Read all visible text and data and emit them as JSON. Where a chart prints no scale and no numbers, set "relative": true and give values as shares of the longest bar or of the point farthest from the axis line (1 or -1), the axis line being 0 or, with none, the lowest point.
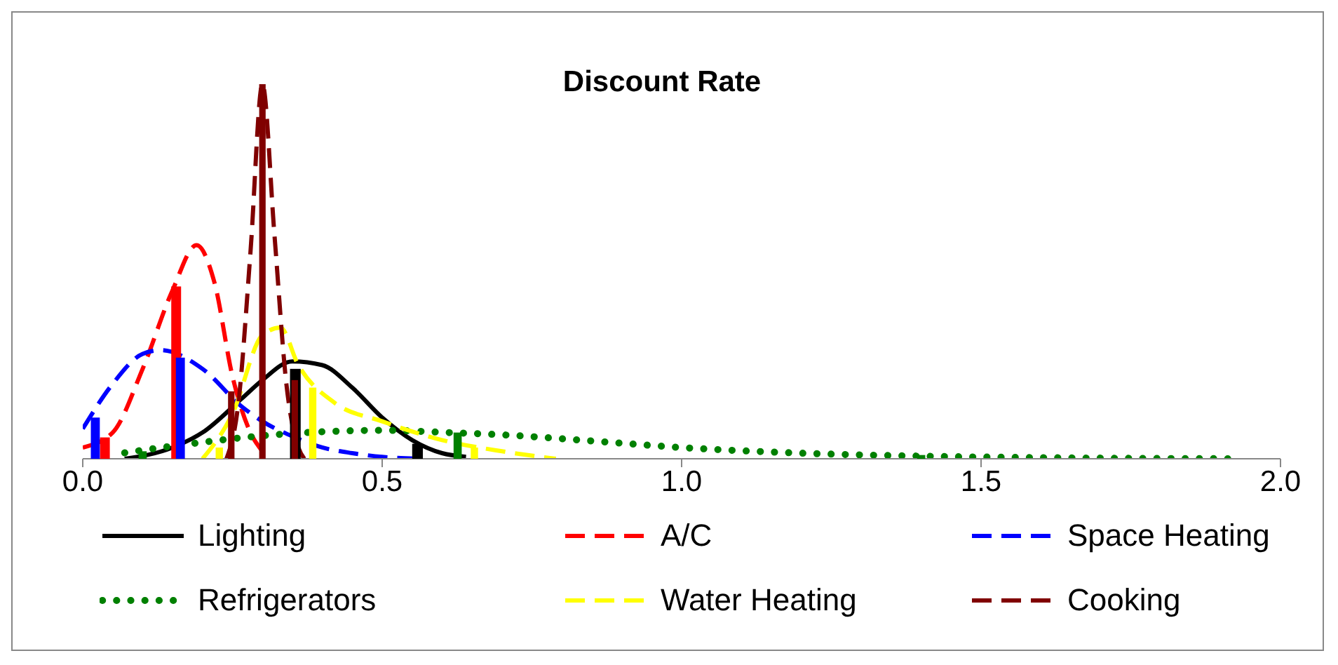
{
  "chart_data": {
    "type": "line",
    "title": "Discount Rate",
    "relative": true,
    "xlim": [
      0,
      2
    ],
    "xticks": [
      {
        "value": 0,
        "label": "0.0"
      },
      0.5,
      {
        "value": 1,
        "label": "1.0"
      },
      1.5,
      {
        "value": 2,
        "label": "2.0"
      }
    ],
    "grid": false,
    "legend": "bottom",
    "marker": "none",
    "series": [
      {
        "name": "Lighting",
        "color": "#000000",
        "line_style": "solid",
        "x": [
          0.07,
          0.15,
          0.2,
          0.265,
          0.3,
          0.35,
          0.4,
          0.45,
          0.5,
          0.55,
          0.6,
          0.64
        ],
        "values": [
          0.0,
          0.03,
          0.07,
          0.16,
          0.21,
          0.26,
          0.25,
          0.19,
          0.11,
          0.05,
          0.015,
          0.005
        ]
      },
      {
        "name": "A/C",
        "color": "#ff0000",
        "line_style": "dashed",
        "x": [
          0.0,
          0.05,
          0.1,
          0.15,
          0.19,
          0.22,
          0.25,
          0.28,
          0.3
        ],
        "values": [
          0.03,
          0.07,
          0.24,
          0.45,
          0.57,
          0.47,
          0.22,
          0.07,
          0.02
        ]
      },
      {
        "name": "Space Heating",
        "color": "#0000ff",
        "line_style": "dashed",
        "x": [
          0.0,
          0.05,
          0.1,
          0.13,
          0.2,
          0.265,
          0.3,
          0.35,
          0.4,
          0.45,
          0.5,
          0.56
        ],
        "values": [
          0.08,
          0.2,
          0.28,
          0.29,
          0.24,
          0.14,
          0.1,
          0.06,
          0.03,
          0.015,
          0.005,
          0.0
        ]
      },
      {
        "name": "Refrigerators",
        "color": "#008000",
        "line_style": "dotted",
        "x": [
          0.07,
          0.18,
          0.29,
          0.4,
          0.5,
          0.61,
          0.7,
          0.83,
          1.0,
          1.2,
          1.4,
          1.6,
          1.93
        ],
        "values": [
          0.016,
          0.04,
          0.06,
          0.072,
          0.076,
          0.07,
          0.064,
          0.05,
          0.03,
          0.015,
          0.007,
          0.003,
          0.0
        ]
      },
      {
        "name": "Water Heating",
        "color": "#ffff00",
        "line_style": "dashed",
        "x": [
          0.2,
          0.25,
          0.3,
          0.33,
          0.36,
          0.42,
          0.5,
          0.6,
          0.7,
          0.79
        ],
        "values": [
          0.0,
          0.12,
          0.33,
          0.35,
          0.25,
          0.15,
          0.1,
          0.05,
          0.02,
          0.0
        ]
      },
      {
        "name": "Cooking",
        "color": "#800000",
        "line_style": "dashed",
        "x": [
          0.24,
          0.26,
          0.28,
          0.3,
          0.32,
          0.34,
          0.36,
          0.37
        ],
        "values": [
          0.0,
          0.15,
          0.55,
          1.0,
          0.6,
          0.2,
          0.03,
          0.0
        ]
      },
      {
        "type": "bar",
        "color": "#000000",
        "x": [
          0.355,
          0.559
        ],
        "values": [
          0.24,
          0.04
        ]
      },
      {
        "type": "bar",
        "color": "#ff0000",
        "x": [
          0.037,
          0.156
        ],
        "values": [
          0.057,
          0.46
        ]
      },
      {
        "type": "bar",
        "color": "#0000ff",
        "x": [
          0.021,
          0.163
        ],
        "values": [
          0.11,
          0.27
        ]
      },
      {
        "type": "bar",
        "color": "#008000",
        "x": [
          0.1,
          0.626,
          1.4
        ],
        "values": [
          0.02,
          0.07,
          0.01
        ]
      },
      {
        "type": "bar",
        "color": "#ffff00",
        "x": [
          0.228,
          0.384,
          0.654
        ],
        "values": [
          0.03,
          0.19,
          0.03
        ]
      },
      {
        "type": "bar",
        "color": "#800000",
        "x": [
          0.248,
          0.3,
          0.354
        ],
        "values": [
          0.18,
          1.0,
          0.21
        ]
      }
    ]
  }
}
